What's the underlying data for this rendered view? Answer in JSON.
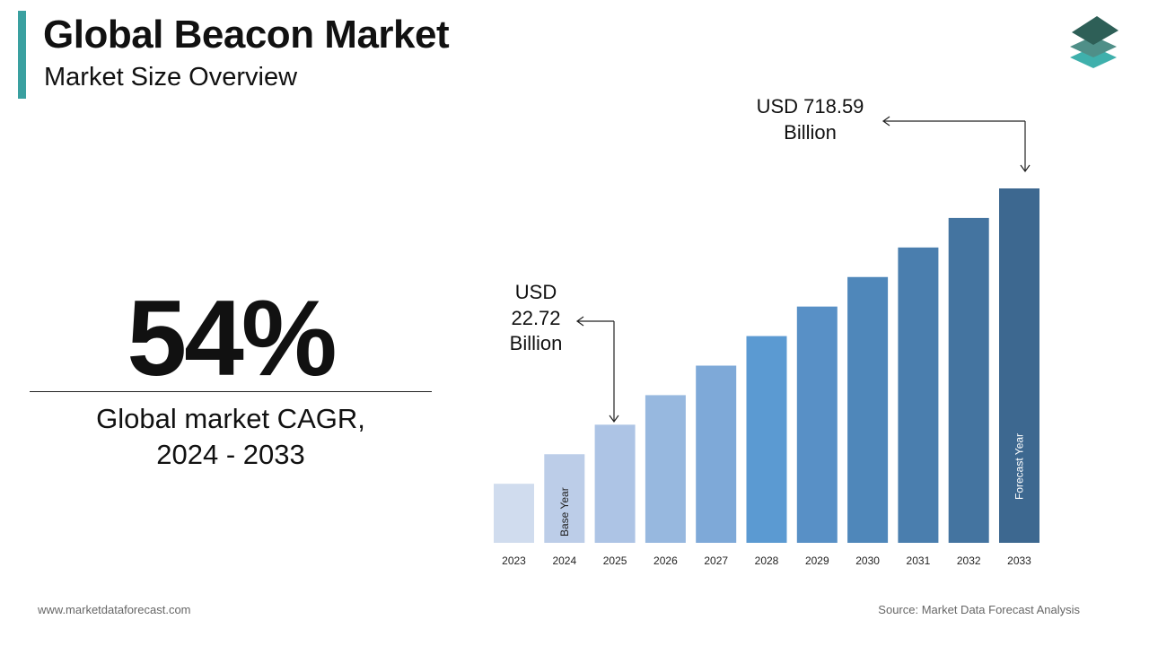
{
  "header": {
    "title": "Global Beacon Market",
    "subtitle": "Market Size Overview"
  },
  "kpi": {
    "value": "54%",
    "label_line1": "Global market CAGR,",
    "label_line2": "2024 - 2033"
  },
  "annotations": {
    "start": {
      "line1": "USD",
      "line2": "22.72",
      "line3": "Billion"
    },
    "end": {
      "line1": "USD 718.59",
      "line2": "Billion"
    }
  },
  "footer": {
    "website": "www.marketdataforecast.com",
    "source": "Source: Market Data Forecast Analysis"
  },
  "chart_data": {
    "type": "bar",
    "title": "",
    "xlabel": "",
    "ylabel": "",
    "categories": [
      "2023",
      "2024",
      "2025",
      "2026",
      "2027",
      "2028",
      "2029",
      "2030",
      "2031",
      "2032",
      "2033"
    ],
    "values": [
      2,
      3,
      4,
      5,
      6,
      7,
      8,
      9,
      10,
      11,
      12
    ],
    "value_note_labels": {
      "2025": "USD 22.72 Billion",
      "2033": "USD 718.59 Billion"
    },
    "bar_inner_labels": {
      "2024": "Base Year",
      "2033": "Forecast Year"
    },
    "ylim": [
      0,
      12
    ],
    "grid": false,
    "colors": [
      "#d0dcee",
      "#bccde8",
      "#adc4e5",
      "#97b8df",
      "#7ea9d8",
      "#5b9ad2",
      "#5890c6",
      "#4f87ba",
      "#4a7eae",
      "#4474a0",
      "#3d6890"
    ]
  },
  "colors": {
    "accent": "#3aa0a0"
  }
}
